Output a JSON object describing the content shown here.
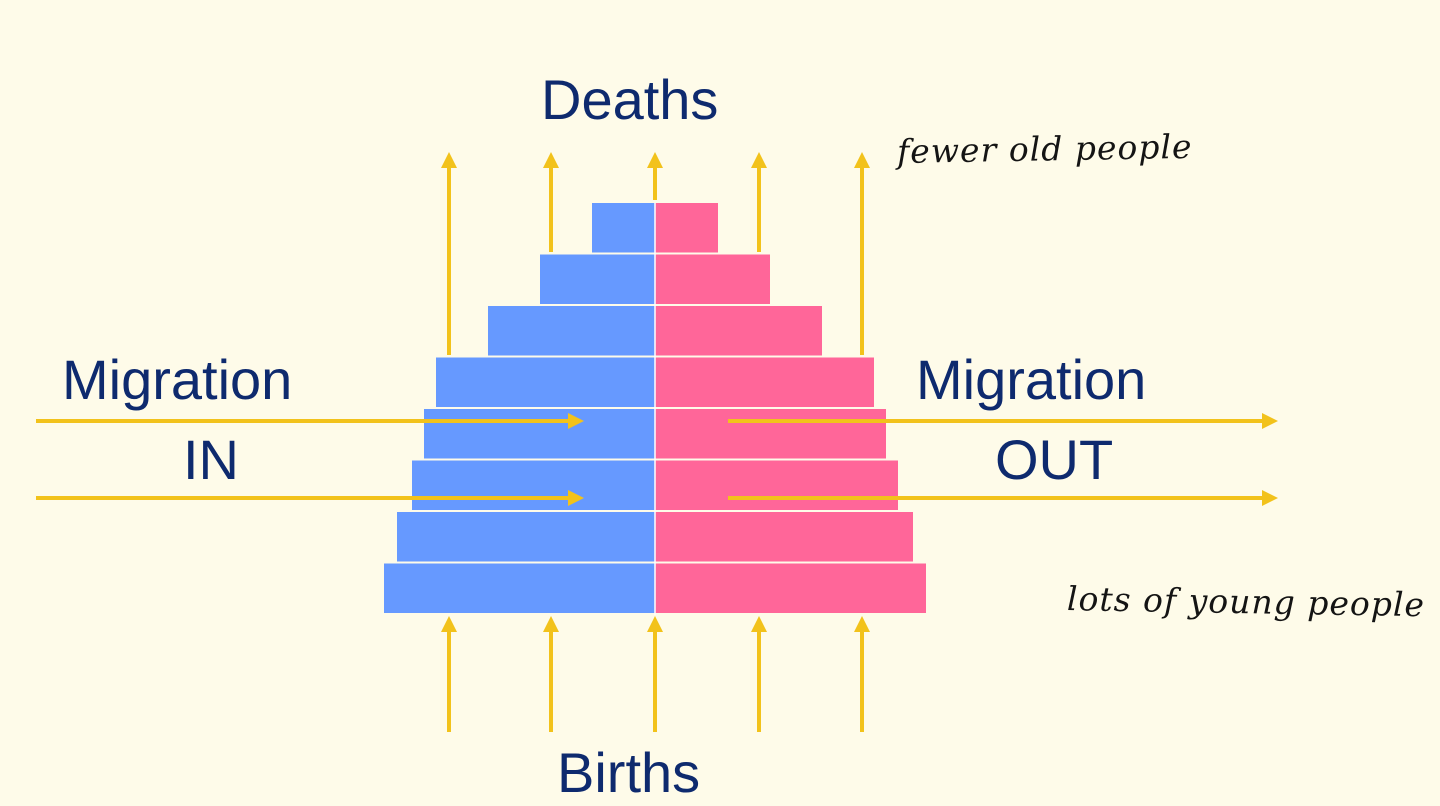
{
  "labels": {
    "deaths": "Deaths",
    "births": "Births",
    "migration_in_line1": "Migration",
    "migration_in_line2": "IN",
    "migration_out_line1": "Migration",
    "migration_out_line2": "OUT"
  },
  "annotations": {
    "top_note": "fewer old people",
    "bottom_note": "lots of young people"
  },
  "pyramid": {
    "bar_count": 8,
    "left_color": "#6699ff",
    "right_color": "#ff6699"
  },
  "arrows": {
    "deaths_count": 5,
    "births_count": 5,
    "migration_in_count": 2,
    "migration_out_count": 2,
    "color": "#f2c21b"
  },
  "colors": {
    "background": "#fefbe9",
    "label_text": "#0e2a6e",
    "note_text": "#141414"
  }
}
